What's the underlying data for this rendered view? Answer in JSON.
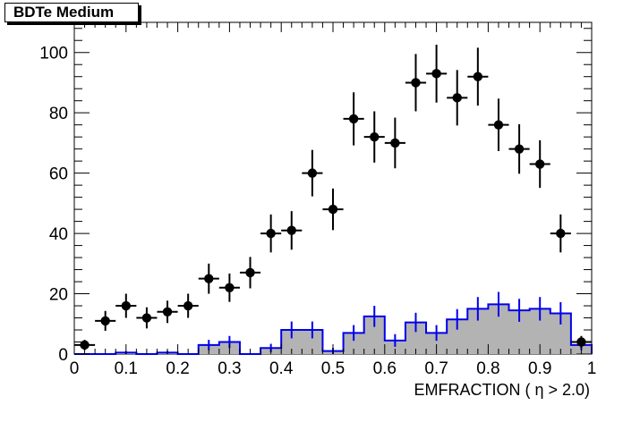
{
  "title": "BDTe Medium",
  "chart_data": {
    "type": "histogram",
    "title": "BDTe Medium",
    "xlabel": "EMFRACTION ( η > 2.0)",
    "ylabel": "",
    "xlim": [
      0,
      1
    ],
    "ylim": [
      0,
      110
    ],
    "grid": false,
    "x_ticks": [
      "0",
      "0.1",
      "0.2",
      "0.3",
      "0.4",
      "0.5",
      "0.6",
      "0.7",
      "0.8",
      "0.9",
      "1"
    ],
    "y_ticks": [
      "0",
      "20",
      "40",
      "60",
      "80",
      "100"
    ],
    "bin_width": 0.04,
    "data_points": {
      "style": "black markers with error bars",
      "x": [
        0.02,
        0.06,
        0.1,
        0.14,
        0.18,
        0.22,
        0.26,
        0.3,
        0.34,
        0.38,
        0.42,
        0.46,
        0.5,
        0.54,
        0.58,
        0.62,
        0.66,
        0.7,
        0.74,
        0.78,
        0.82,
        0.86,
        0.9,
        0.94,
        0.98
      ],
      "y": [
        3,
        11,
        16,
        12,
        14,
        16,
        25,
        22,
        27,
        40,
        41,
        60,
        48,
        78,
        72,
        70,
        90,
        93,
        85,
        92,
        76,
        68,
        63,
        40,
        4
      ],
      "yerr": [
        1.7,
        3.3,
        4.0,
        3.5,
        3.7,
        4.0,
        5.0,
        4.7,
        5.2,
        6.3,
        6.4,
        7.7,
        6.9,
        8.8,
        8.5,
        8.4,
        9.5,
        9.6,
        9.2,
        9.6,
        8.7,
        8.2,
        7.9,
        6.3,
        2.0
      ]
    },
    "histogram": {
      "style": "blue outline, grey fill, blue error bars",
      "bin_edges": [
        0,
        0.04,
        0.08,
        0.12,
        0.16,
        0.2,
        0.24,
        0.28,
        0.32,
        0.36,
        0.4,
        0.44,
        0.48,
        0.52,
        0.56,
        0.6,
        0.64,
        0.68,
        0.72,
        0.76,
        0.8,
        0.84,
        0.88,
        0.92,
        0.96,
        1.0
      ],
      "values": [
        0,
        0,
        0.5,
        0,
        0.5,
        0,
        3,
        4,
        0,
        2,
        8,
        8,
        1,
        7,
        12.5,
        4.5,
        10.5,
        7,
        11.5,
        15,
        16.5,
        14.5,
        15,
        13.5,
        3
      ],
      "errors": [
        0,
        0,
        0.5,
        0,
        0.5,
        0,
        1.7,
        2,
        0,
        1.4,
        2.8,
        2.8,
        1,
        2.6,
        3.5,
        2.1,
        3.2,
        2.6,
        3.4,
        3.9,
        4.1,
        3.8,
        3.9,
        3.7,
        1.7
      ]
    },
    "colors": {
      "points": "#000000",
      "histogram_line": "#0000ee",
      "histogram_fill": "#b3b3b3"
    }
  }
}
